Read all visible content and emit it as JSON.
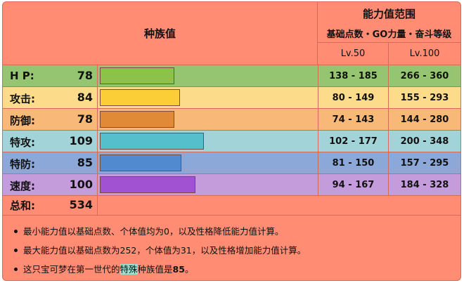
{
  "header": {
    "base_stats": "种族值",
    "stat_range": "能力值范围",
    "stat_range_sub": "基础点数・GO力量・奋斗等级",
    "lv50": "Lv.50",
    "lv100": "Lv.100"
  },
  "stats": [
    {
      "label": "H P:",
      "value": "78",
      "fraction": 0.3659,
      "lv50": "138 - 185",
      "lv100": "266 - 360",
      "row_color": "#96C572",
      "bar_color": "#8BC34A"
    },
    {
      "label": "攻击:",
      "value": "84",
      "fraction": 0.3941,
      "lv50": "80 - 149",
      "lv100": "155 - 293",
      "row_color": "#FCDB8A",
      "bar_color": "#FBCD36"
    },
    {
      "label": "防御:",
      "value": "78",
      "fraction": 0.3659,
      "lv50": "74 - 143",
      "lv100": "144 - 280",
      "row_color": "#F8B878",
      "bar_color": "#E08A38"
    },
    {
      "label": "特攻:",
      "value": "109",
      "fraction": 0.5113,
      "lv50": "102 - 177",
      "lv100": "200 - 348",
      "row_color": "#A2D3D9",
      "bar_color": "#55C0CB"
    },
    {
      "label": "特防:",
      "value": "85",
      "fraction": 0.3987,
      "lv50": "81 - 150",
      "lv100": "157 - 295",
      "row_color": "#8CA8D8",
      "bar_color": "#528AD0"
    },
    {
      "label": "速度:",
      "value": "100",
      "fraction": 0.4691,
      "lv50": "94 - 167",
      "lv100": "184 - 328",
      "row_color": "#C49CDB",
      "bar_color": "#A052D2"
    }
  ],
  "total": {
    "label": "总和:",
    "value": "534"
  },
  "notes": {
    "n1": "最小能力值以基础点数、个体值均为0，以及性格降低能力值计算。",
    "n2": "最大能力值以基础点数为252，个体值为31，以及性格增加能力值计算。",
    "n3_pre": "这只宝可梦在第一世代的",
    "n3_hl": "特殊",
    "n3_mid": "种族值是",
    "n3_val": "85",
    "n3_end": "。"
  },
  "colors": {
    "background": "#FF8C73",
    "border": "#d46a5a"
  }
}
